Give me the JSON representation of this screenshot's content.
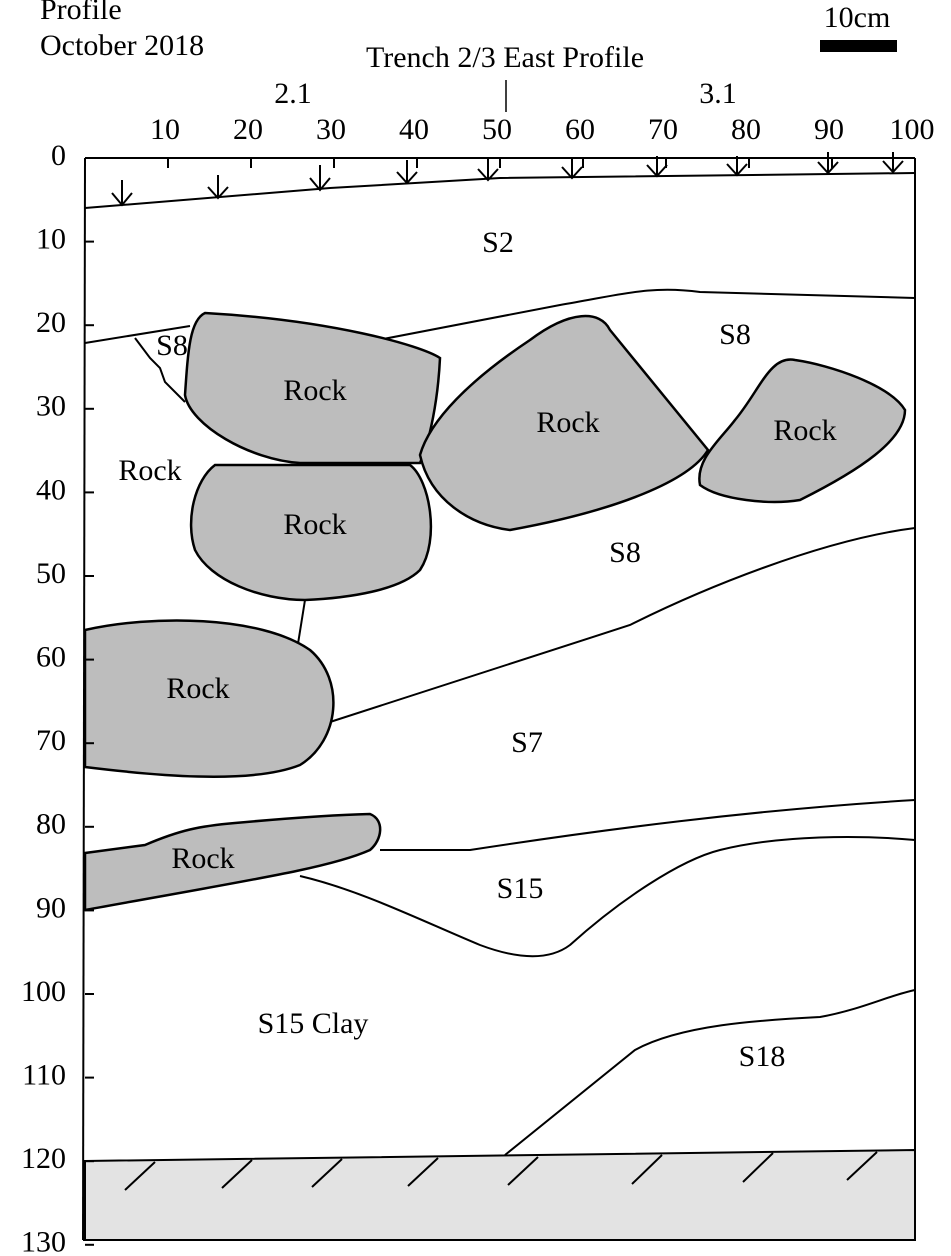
{
  "header": {
    "title_lines": [
      "Profile",
      "October 2018"
    ],
    "trench_title": "Trench 2/3 East Profile",
    "scale_label": "10cm",
    "grid_markers": [
      "2.1",
      "3.1"
    ]
  },
  "axes": {
    "x_ticks": [
      10,
      20,
      30,
      40,
      50,
      60,
      70,
      80,
      90,
      100
    ],
    "y_ticks": [
      0,
      10,
      20,
      30,
      40,
      50,
      60,
      70,
      80,
      90,
      100,
      110,
      120,
      130
    ]
  },
  "labels": {
    "layers": [
      "S2",
      "S8",
      "S8",
      "S8",
      "S7",
      "S15",
      "S15 Clay",
      "S18"
    ],
    "rocks": [
      "Rock",
      "Rock",
      "Rock",
      "Rock",
      "Rock",
      "Rock",
      "Rock"
    ]
  }
}
